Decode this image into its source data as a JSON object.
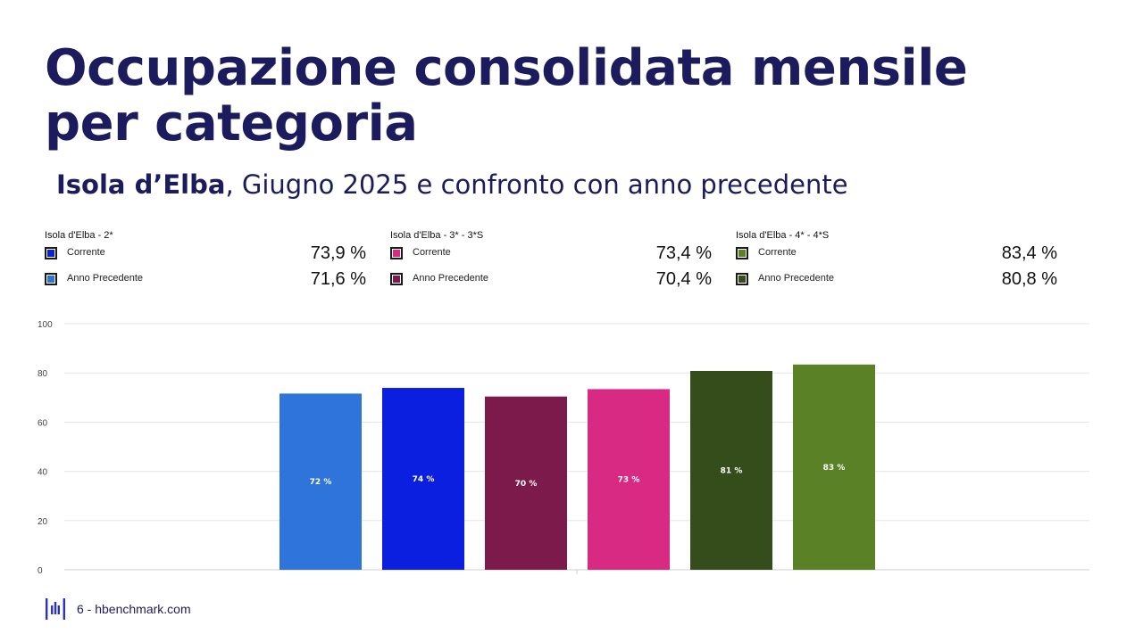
{
  "page": {
    "title_line1": "Occupazione consolidata mensile",
    "title_line2": "per categoria",
    "subtitle_bold": "Isola d’Elba",
    "subtitle_rest": ", Giugno 2025 e confronto con anno precedente",
    "footer": "6 - hbenchmark.com",
    "logo_icon": "hbenchmark-logo-icon"
  },
  "legend": [
    {
      "title": "Isola d'Elba - 2*",
      "items": [
        {
          "label": "Corrente",
          "value": "73,9 %",
          "color": "#0a1fe0"
        },
        {
          "label": "Anno Precedente",
          "value": "71,6 %",
          "color": "#2f74da"
        }
      ]
    },
    {
      "title": "Isola d'Elba - 3* - 3*S",
      "items": [
        {
          "label": "Corrente",
          "value": "73,4 %",
          "color": "#d92a83"
        },
        {
          "label": "Anno Precedente",
          "value": "70,4 %",
          "color": "#7b1a4b"
        }
      ]
    },
    {
      "title": "Isola d'Elba - 4* - 4*S",
      "items": [
        {
          "label": "Corrente",
          "value": "83,4 %",
          "color": "#5b8126"
        },
        {
          "label": "Anno Precedente",
          "value": "80,8 %",
          "color": "#354d1a"
        }
      ]
    }
  ],
  "chart_data": {
    "type": "bar",
    "title": "",
    "xlabel": "",
    "ylabel": "",
    "ylim": [
      0,
      100
    ],
    "yticks": [
      0,
      20,
      40,
      60,
      80,
      100
    ],
    "grid": true,
    "bars": [
      {
        "value": 71.6,
        "label": "72 %",
        "color": "#2f74da"
      },
      {
        "value": 73.9,
        "label": "74 %",
        "color": "#0a1fe0"
      },
      {
        "value": 70.4,
        "label": "70 %",
        "color": "#7b1a4b"
      },
      {
        "value": 73.4,
        "label": "73 %",
        "color": "#d92a83"
      },
      {
        "value": 80.8,
        "label": "81 %",
        "color": "#354d1a"
      },
      {
        "value": 83.4,
        "label": "83 %",
        "color": "#5b8126"
      }
    ]
  }
}
